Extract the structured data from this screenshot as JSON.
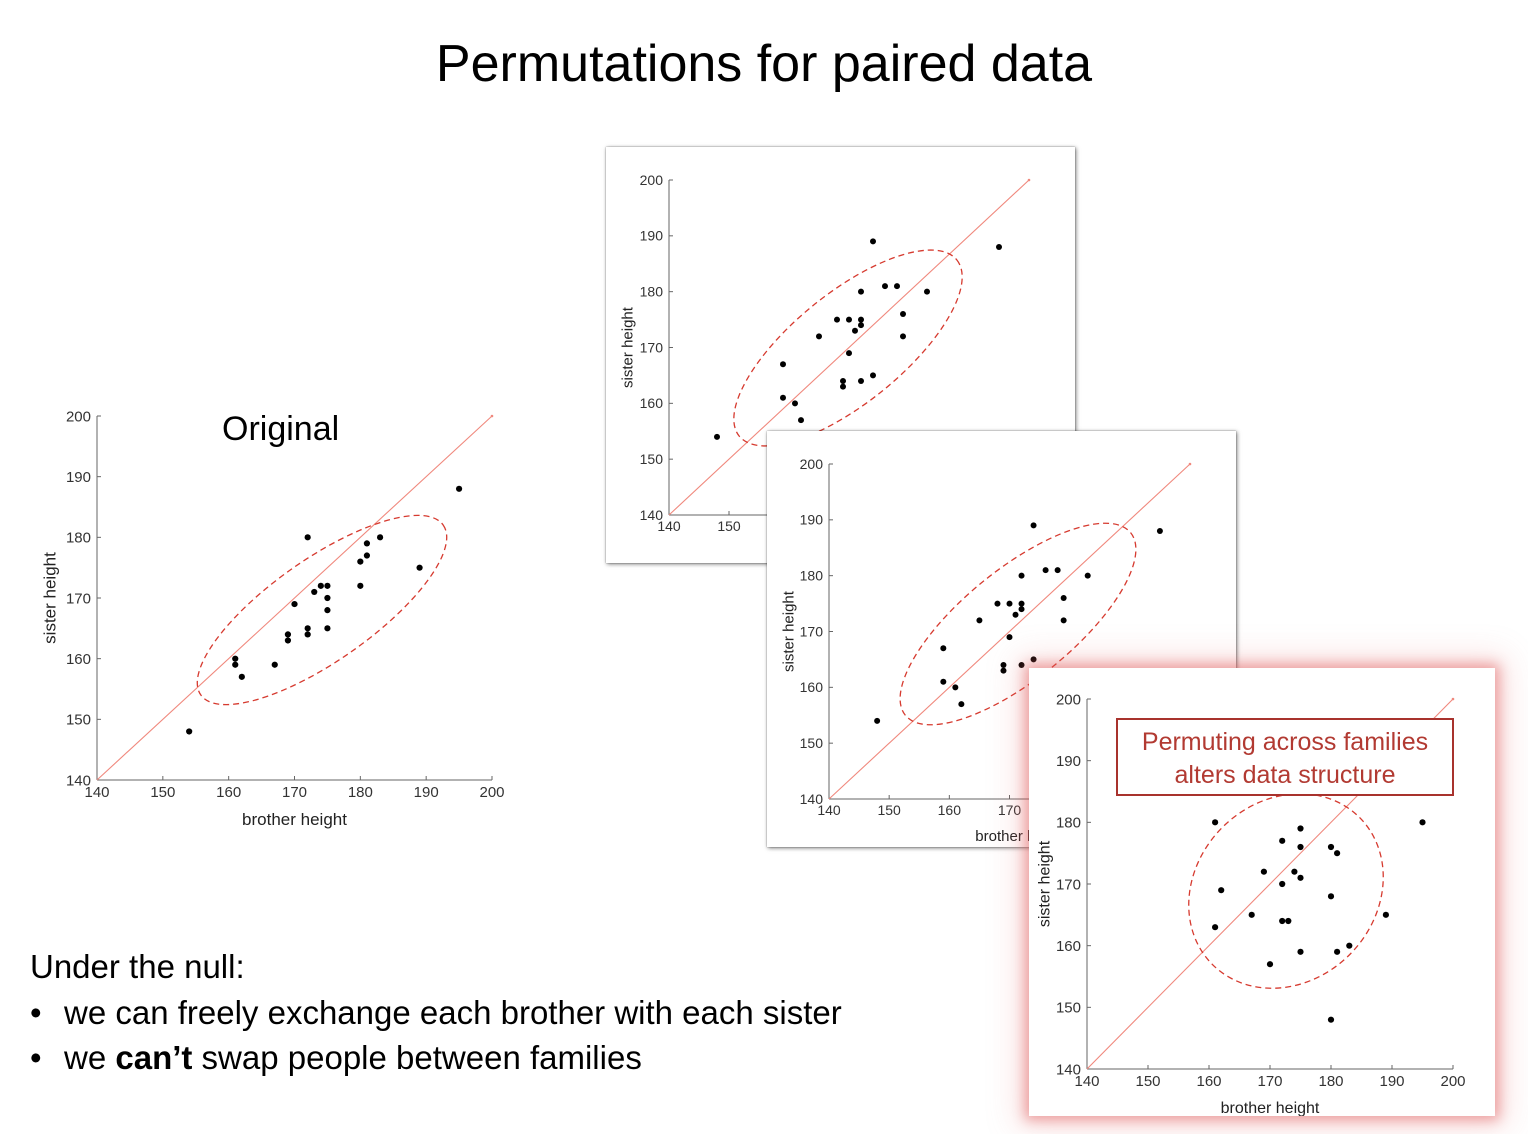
{
  "slide": {
    "title": "Permutations for paired data",
    "original_label": "Original",
    "callout_text": [
      "Permuting across families",
      "alters data structure"
    ],
    "null_heading": "Under the null:",
    "bullet_symbol": "•",
    "bullets": [
      {
        "text": "we can freely exchange each brother with each sister"
      },
      {
        "prefix": "we ",
        "bold": "can’t",
        "suffix": " swap people between families"
      }
    ]
  },
  "colors": {
    "points": "#000000",
    "identity_line": "#f0887d",
    "ellipse": "#d63a2f",
    "callout": "#b23a32",
    "axis": "#666666"
  },
  "chart_data": [
    {
      "type": "scatter",
      "xlabel": "brother height",
      "ylabel": "sister height",
      "xlim": [
        140,
        200
      ],
      "ylim": [
        140,
        200
      ],
      "xticks": [
        140,
        150,
        160,
        170,
        180,
        190,
        200
      ],
      "yticks": [
        140,
        150,
        160,
        170,
        180,
        190,
        200
      ],
      "identity_line": true,
      "points": [
        [
          154,
          148
        ],
        [
          161,
          160
        ],
        [
          161,
          159
        ],
        [
          162,
          157
        ],
        [
          167,
          159
        ],
        [
          169,
          164
        ],
        [
          169,
          163
        ],
        [
          170,
          169
        ],
        [
          172,
          180
        ],
        [
          172,
          165
        ],
        [
          172,
          164
        ],
        [
          173,
          171
        ],
        [
          174,
          172
        ],
        [
          175,
          172
        ],
        [
          175,
          170
        ],
        [
          175,
          168
        ],
        [
          175,
          165
        ],
        [
          180,
          176
        ],
        [
          180,
          172
        ],
        [
          181,
          179
        ],
        [
          181,
          177
        ],
        [
          183,
          180
        ],
        [
          189,
          175
        ],
        [
          195,
          188
        ]
      ]
    },
    {
      "type": "scatter",
      "xlabel": "",
      "ylabel": "sister height",
      "xlim": [
        140,
        200
      ],
      "ylim": [
        140,
        200
      ],
      "xticks": [
        140,
        150
      ],
      "yticks": [
        140,
        150,
        160,
        170,
        180,
        190,
        200
      ],
      "identity_line": true,
      "points": [
        [
          148,
          154
        ],
        [
          159,
          167
        ],
        [
          159,
          161
        ],
        [
          161,
          160
        ],
        [
          162,
          157
        ],
        [
          165,
          172
        ],
        [
          168,
          175
        ],
        [
          169,
          164
        ],
        [
          169,
          163
        ],
        [
          170,
          175
        ],
        [
          170,
          169
        ],
        [
          171,
          173
        ],
        [
          172,
          175
        ],
        [
          172,
          174
        ],
        [
          172,
          180
        ],
        [
          172,
          164
        ],
        [
          174,
          189
        ],
        [
          174,
          165
        ],
        [
          176,
          181
        ],
        [
          178,
          181
        ],
        [
          179,
          176
        ],
        [
          179,
          172
        ],
        [
          183,
          180
        ],
        [
          195,
          188
        ]
      ]
    },
    {
      "type": "scatter",
      "xlabel": "brother he",
      "ylabel": "sister height",
      "xlim": [
        140,
        200
      ],
      "ylim": [
        140,
        200
      ],
      "xticks": [
        140,
        150,
        160,
        170
      ],
      "yticks": [
        140,
        150,
        160,
        170,
        180,
        190,
        200
      ],
      "identity_line": true,
      "points": [
        [
          148,
          154
        ],
        [
          159,
          167
        ],
        [
          159,
          161
        ],
        [
          161,
          160
        ],
        [
          162,
          157
        ],
        [
          165,
          172
        ],
        [
          168,
          175
        ],
        [
          169,
          164
        ],
        [
          169,
          163
        ],
        [
          170,
          175
        ],
        [
          170,
          169
        ],
        [
          171,
          173
        ],
        [
          172,
          175
        ],
        [
          172,
          174
        ],
        [
          172,
          180
        ],
        [
          172,
          164
        ],
        [
          174,
          189
        ],
        [
          174,
          165
        ],
        [
          176,
          181
        ],
        [
          178,
          181
        ],
        [
          179,
          176
        ],
        [
          179,
          172
        ],
        [
          183,
          180
        ],
        [
          195,
          188
        ]
      ]
    },
    {
      "type": "scatter",
      "xlabel": "brother height",
      "ylabel": "sister height",
      "xlim": [
        140,
        200
      ],
      "ylim": [
        140,
        200
      ],
      "xticks": [
        140,
        150,
        160,
        170,
        180,
        190,
        200
      ],
      "yticks": [
        140,
        150,
        160,
        170,
        180,
        190,
        200
      ],
      "identity_line": true,
      "points": [
        [
          161,
          180
        ],
        [
          161,
          163
        ],
        [
          162,
          169
        ],
        [
          167,
          165
        ],
        [
          169,
          172
        ],
        [
          170,
          157
        ],
        [
          172,
          177
        ],
        [
          172,
          170
        ],
        [
          172,
          164
        ],
        [
          173,
          164
        ],
        [
          174,
          172
        ],
        [
          175,
          179
        ],
        [
          175,
          176
        ],
        [
          175,
          171
        ],
        [
          175,
          159
        ],
        [
          180,
          176
        ],
        [
          180,
          168
        ],
        [
          180,
          148
        ],
        [
          181,
          175
        ],
        [
          181,
          159
        ],
        [
          183,
          160
        ],
        [
          189,
          165
        ],
        [
          195,
          180
        ]
      ]
    }
  ]
}
